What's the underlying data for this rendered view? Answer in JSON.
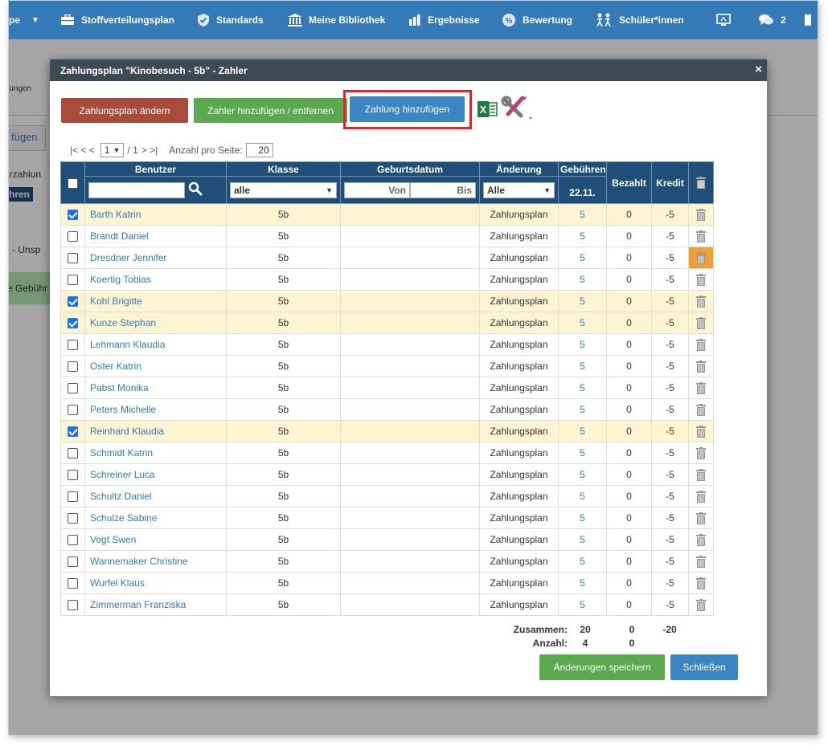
{
  "nav": {
    "items": [
      {
        "label": "Stoffverteilungsplan",
        "icon": "briefcase-icon"
      },
      {
        "label": "Standards",
        "icon": "shield-check-icon"
      },
      {
        "label": "Meine Bibliothek",
        "icon": "library-icon"
      },
      {
        "label": "Ergebnisse",
        "icon": "bar-chart-icon"
      },
      {
        "label": "Bewertung",
        "icon": "percent-icon"
      },
      {
        "label": "Schüler*innen",
        "icon": "students-icon"
      }
    ],
    "badge_count": "2",
    "left_fragment": "pe"
  },
  "background": {
    "toolbar_fragment": "lungen",
    "add_button_fragment": "fügen",
    "label_fragment": "arzahlun",
    "col_fragment": "hren",
    "item_fragment": "e - Unsp",
    "green_fragment": "e Gebühr"
  },
  "modal": {
    "title": "Zahlungsplan \"Kinobesuch - 5b\" - Zahler",
    "close_symbol": "×",
    "buttons": {
      "change_plan": "Zahlungsplan ändern",
      "add_remove_payer": "Zahler hinzufügen / entfernen",
      "add_payment": "Zahlung hinzufügen",
      "save": "Änderungen speichern",
      "close": "Schließen"
    },
    "pager": {
      "first_prev": "|< < <",
      "page": "1",
      "of_total": "/ 1",
      "next_last": "> >|",
      "per_page_label": "Anzahl pro Seite:",
      "per_page": "20"
    },
    "columns": {
      "user": "Benutzer",
      "class": "Klasse",
      "birthdate": "Geburtsdatum",
      "change": "Änderung",
      "fees": "Gebühren",
      "fees_date": "22.11.",
      "paid": "Bezahlt",
      "credit": "Kredit"
    },
    "filters": {
      "class_value": "alle",
      "from_placeholder": "Von",
      "to_placeholder": "Bis",
      "change_value": "Alle"
    },
    "rows": [
      {
        "name": "Barth Katrin",
        "class": "5b",
        "change": "Zahlungsplan",
        "fee": "5",
        "paid": "0",
        "credit": "-5",
        "checked": true
      },
      {
        "name": "Brandt Daniel",
        "class": "5b",
        "change": "Zahlungsplan",
        "fee": "5",
        "paid": "0",
        "credit": "-5",
        "checked": false
      },
      {
        "name": "Dresdner Jennifer",
        "class": "5b",
        "change": "Zahlungsplan",
        "fee": "5",
        "paid": "0",
        "credit": "-5",
        "checked": false
      },
      {
        "name": "Koertig Tobias",
        "class": "5b",
        "change": "Zahlungsplan",
        "fee": "5",
        "paid": "0",
        "credit": "-5",
        "checked": false
      },
      {
        "name": "Kohl Brigitte",
        "class": "5b",
        "change": "Zahlungsplan",
        "fee": "5",
        "paid": "0",
        "credit": "-5",
        "checked": true
      },
      {
        "name": "Kunze Stephan",
        "class": "5b",
        "change": "Zahlungsplan",
        "fee": "5",
        "paid": "0",
        "credit": "-5",
        "checked": true
      },
      {
        "name": "Lehmann Klaudia",
        "class": "5b",
        "change": "Zahlungsplan",
        "fee": "5",
        "paid": "0",
        "credit": "-5",
        "checked": false
      },
      {
        "name": "Oster Katrin",
        "class": "5b",
        "change": "Zahlungsplan",
        "fee": "5",
        "paid": "0",
        "credit": "-5",
        "checked": false
      },
      {
        "name": "Pabst Monika",
        "class": "5b",
        "change": "Zahlungsplan",
        "fee": "5",
        "paid": "0",
        "credit": "-5",
        "checked": false
      },
      {
        "name": "Peters Michelle",
        "class": "5b",
        "change": "Zahlungsplan",
        "fee": "5",
        "paid": "0",
        "credit": "-5",
        "checked": false
      },
      {
        "name": "Reinhard Klaudia",
        "class": "5b",
        "change": "Zahlungsplan",
        "fee": "5",
        "paid": "0",
        "credit": "-5",
        "checked": true
      },
      {
        "name": "Schmidt Katrin",
        "class": "5b",
        "change": "Zahlungsplan",
        "fee": "5",
        "paid": "0",
        "credit": "-5",
        "checked": false
      },
      {
        "name": "Schreiner Luca",
        "class": "5b",
        "change": "Zahlungsplan",
        "fee": "5",
        "paid": "0",
        "credit": "-5",
        "checked": false
      },
      {
        "name": "Schultz Daniel",
        "class": "5b",
        "change": "Zahlungsplan",
        "fee": "5",
        "paid": "0",
        "credit": "-5",
        "checked": false
      },
      {
        "name": "Schulze Sabine",
        "class": "5b",
        "change": "Zahlungsplan",
        "fee": "5",
        "paid": "0",
        "credit": "-5",
        "checked": false
      },
      {
        "name": "Vogt Swen",
        "class": "5b",
        "change": "Zahlungsplan",
        "fee": "5",
        "paid": "0",
        "credit": "-5",
        "checked": false
      },
      {
        "name": "Wannemaker Christine",
        "class": "5b",
        "change": "Zahlungsplan",
        "fee": "5",
        "paid": "0",
        "credit": "-5",
        "checked": false
      },
      {
        "name": "Wurfel Klaus",
        "class": "5b",
        "change": "Zahlungsplan",
        "fee": "5",
        "paid": "0",
        "credit": "-5",
        "checked": false
      },
      {
        "name": "Zimmerman Franziska",
        "class": "5b",
        "change": "Zahlungsplan",
        "fee": "5",
        "paid": "0",
        "credit": "-5",
        "checked": false
      }
    ],
    "totals": {
      "sum_label": "Zusammen:",
      "sum_fees": "20",
      "sum_paid": "0",
      "sum_credit": "-20",
      "count_label": "Anzahl:",
      "count_fees": "4",
      "count_paid": "0"
    }
  },
  "colors": {
    "nav_blue": "#337ab7",
    "header_navy": "#1f4e79",
    "highlight_row": "#fdf4d2",
    "highlight_red": "#e0242b",
    "delete_orange": "#f0a030"
  }
}
